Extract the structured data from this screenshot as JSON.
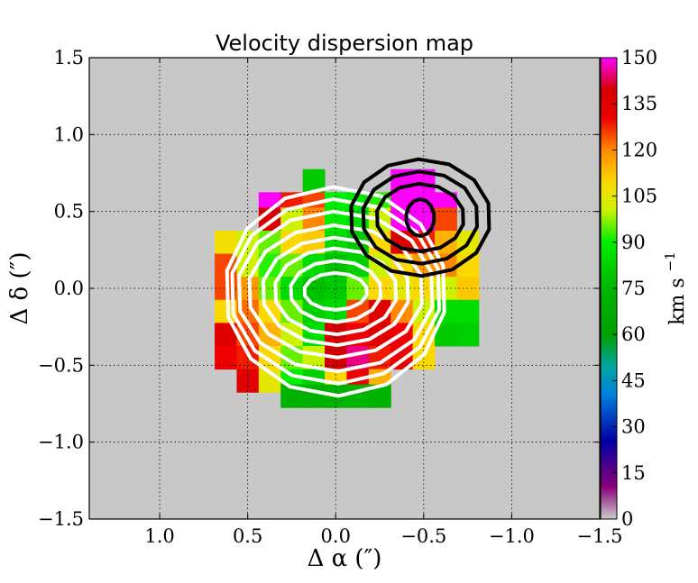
{
  "chart_data": {
    "type": "heatmap",
    "title": "Velocity dispersion map",
    "xlabel": "Δ α  (″)",
    "ylabel": "Δ δ  (″)",
    "xlim": [
      1.4,
      -1.5
    ],
    "ylim": [
      -1.5,
      1.5
    ],
    "x_ticks": [
      1.0,
      0.5,
      0.0,
      -0.5,
      -1.0,
      -1.5
    ],
    "x_tick_labels": [
      "1.0",
      "0.5",
      "0.0",
      "−0.5",
      "−1.0",
      "−1.5"
    ],
    "y_ticks": [
      1.5,
      1.0,
      0.5,
      0.0,
      -0.5,
      -1.0,
      -1.5
    ],
    "y_tick_labels": [
      "1.5",
      "1.0",
      "0.5",
      "0.0",
      "−0.5",
      "−1.0",
      "−1.5"
    ],
    "grid": true,
    "grid_style": "dotted",
    "background_color": "#c8c8c8",
    "colorbar": {
      "label": "km s",
      "label_exponent": "−1",
      "range": [
        0,
        150
      ],
      "ticks": [
        0,
        15,
        30,
        45,
        60,
        75,
        90,
        105,
        120,
        135,
        150
      ],
      "tick_labels": [
        "0",
        "15",
        "30",
        "45",
        "60",
        "75",
        "90",
        "105",
        "120",
        "135",
        "150"
      ]
    },
    "pixel_size_arcsec": 0.125,
    "pixels": [
      {
        "x": 0.125,
        "y": 0.7,
        "v": 80
      },
      {
        "x": -0.375,
        "y": 0.7,
        "v": 150
      },
      {
        "x": -0.5,
        "y": 0.7,
        "v": 150
      },
      {
        "x": 0.375,
        "y": 0.55,
        "v": 150
      },
      {
        "x": 0.25,
        "y": 0.55,
        "v": 128
      },
      {
        "x": 0.125,
        "y": 0.55,
        "v": 125
      },
      {
        "x": 0.0,
        "y": 0.55,
        "v": 90
      },
      {
        "x": -0.125,
        "y": 0.55,
        "v": 88
      },
      {
        "x": -0.25,
        "y": 0.55,
        "v": 92
      },
      {
        "x": -0.375,
        "y": 0.55,
        "v": 150
      },
      {
        "x": -0.5,
        "y": 0.55,
        "v": 150
      },
      {
        "x": -0.625,
        "y": 0.55,
        "v": 150
      },
      {
        "x": 0.375,
        "y": 0.45,
        "v": 138
      },
      {
        "x": 0.25,
        "y": 0.45,
        "v": 100
      },
      {
        "x": 0.125,
        "y": 0.45,
        "v": 120
      },
      {
        "x": 0.0,
        "y": 0.45,
        "v": 90
      },
      {
        "x": -0.125,
        "y": 0.45,
        "v": 85
      },
      {
        "x": -0.25,
        "y": 0.45,
        "v": 100
      },
      {
        "x": -0.375,
        "y": 0.45,
        "v": 150
      },
      {
        "x": -0.5,
        "y": 0.45,
        "v": 150
      },
      {
        "x": -0.625,
        "y": 0.45,
        "v": 125
      },
      {
        "x": 0.625,
        "y": 0.3,
        "v": 108
      },
      {
        "x": 0.5,
        "y": 0.3,
        "v": 100
      },
      {
        "x": 0.375,
        "y": 0.3,
        "v": 95
      },
      {
        "x": 0.25,
        "y": 0.3,
        "v": 110
      },
      {
        "x": 0.125,
        "y": 0.3,
        "v": 112
      },
      {
        "x": 0.0,
        "y": 0.3,
        "v": 85
      },
      {
        "x": -0.125,
        "y": 0.3,
        "v": 80
      },
      {
        "x": -0.25,
        "y": 0.3,
        "v": 110
      },
      {
        "x": -0.375,
        "y": 0.3,
        "v": 138
      },
      {
        "x": -0.5,
        "y": 0.3,
        "v": 128
      },
      {
        "x": -0.625,
        "y": 0.3,
        "v": 115
      },
      {
        "x": -0.75,
        "y": 0.3,
        "v": 105
      },
      {
        "x": 0.625,
        "y": 0.15,
        "v": 125
      },
      {
        "x": 0.5,
        "y": 0.15,
        "v": 100
      },
      {
        "x": 0.375,
        "y": 0.15,
        "v": 92
      },
      {
        "x": 0.25,
        "y": 0.15,
        "v": 95
      },
      {
        "x": 0.125,
        "y": 0.15,
        "v": 85
      },
      {
        "x": 0.0,
        "y": 0.15,
        "v": 78
      },
      {
        "x": -0.125,
        "y": 0.15,
        "v": 82
      },
      {
        "x": -0.25,
        "y": 0.15,
        "v": 100
      },
      {
        "x": -0.375,
        "y": 0.15,
        "v": 110
      },
      {
        "x": -0.5,
        "y": 0.15,
        "v": 118
      },
      {
        "x": -0.625,
        "y": 0.15,
        "v": 120
      },
      {
        "x": -0.75,
        "y": 0.15,
        "v": 110
      },
      {
        "x": 0.625,
        "y": 0.0,
        "v": 125
      },
      {
        "x": 0.5,
        "y": 0.0,
        "v": 118
      },
      {
        "x": 0.375,
        "y": 0.0,
        "v": 95
      },
      {
        "x": 0.25,
        "y": 0.0,
        "v": 85
      },
      {
        "x": 0.125,
        "y": 0.0,
        "v": 78
      },
      {
        "x": 0.0,
        "y": 0.0,
        "v": 80
      },
      {
        "x": -0.125,
        "y": 0.0,
        "v": 95
      },
      {
        "x": -0.25,
        "y": 0.0,
        "v": 110
      },
      {
        "x": -0.375,
        "y": 0.0,
        "v": 105
      },
      {
        "x": -0.5,
        "y": 0.0,
        "v": 110
      },
      {
        "x": -0.625,
        "y": 0.0,
        "v": 100
      },
      {
        "x": -0.75,
        "y": 0.0,
        "v": 112
      },
      {
        "x": 0.625,
        "y": -0.15,
        "v": 110
      },
      {
        "x": 0.5,
        "y": -0.15,
        "v": 122
      },
      {
        "x": 0.375,
        "y": -0.15,
        "v": 110
      },
      {
        "x": 0.25,
        "y": -0.15,
        "v": 95
      },
      {
        "x": 0.125,
        "y": -0.15,
        "v": 82
      },
      {
        "x": 0.0,
        "y": -0.15,
        "v": 85
      },
      {
        "x": -0.125,
        "y": -0.15,
        "v": 125
      },
      {
        "x": -0.25,
        "y": -0.15,
        "v": 135
      },
      {
        "x": -0.375,
        "y": -0.15,
        "v": 120
      },
      {
        "x": -0.5,
        "y": -0.15,
        "v": 100
      },
      {
        "x": -0.625,
        "y": -0.15,
        "v": 85
      },
      {
        "x": -0.75,
        "y": -0.15,
        "v": 85
      },
      {
        "x": 0.625,
        "y": -0.3,
        "v": 135
      },
      {
        "x": 0.5,
        "y": -0.3,
        "v": 125
      },
      {
        "x": 0.375,
        "y": -0.3,
        "v": 115
      },
      {
        "x": 0.25,
        "y": -0.3,
        "v": 100
      },
      {
        "x": 0.125,
        "y": -0.3,
        "v": 85
      },
      {
        "x": 0.0,
        "y": -0.3,
        "v": 140
      },
      {
        "x": -0.125,
        "y": -0.3,
        "v": 130
      },
      {
        "x": -0.25,
        "y": -0.3,
        "v": 135
      },
      {
        "x": -0.375,
        "y": -0.3,
        "v": 130
      },
      {
        "x": -0.5,
        "y": -0.3,
        "v": 110
      },
      {
        "x": -0.625,
        "y": -0.3,
        "v": 80
      },
      {
        "x": -0.75,
        "y": -0.3,
        "v": 82
      },
      {
        "x": 0.625,
        "y": -0.45,
        "v": 130
      },
      {
        "x": 0.5,
        "y": -0.45,
        "v": 128
      },
      {
        "x": 0.375,
        "y": -0.45,
        "v": 110
      },
      {
        "x": 0.25,
        "y": -0.45,
        "v": 95
      },
      {
        "x": 0.125,
        "y": -0.45,
        "v": 100
      },
      {
        "x": 0.0,
        "y": -0.45,
        "v": 140
      },
      {
        "x": -0.125,
        "y": -0.45,
        "v": 145
      },
      {
        "x": -0.25,
        "y": -0.45,
        "v": 128
      },
      {
        "x": -0.375,
        "y": -0.45,
        "v": 130
      },
      {
        "x": -0.5,
        "y": -0.45,
        "v": 110
      },
      {
        "x": 0.5,
        "y": -0.6,
        "v": 135
      },
      {
        "x": 0.375,
        "y": -0.6,
        "v": 105
      },
      {
        "x": 0.25,
        "y": -0.6,
        "v": 90
      },
      {
        "x": 0.125,
        "y": -0.6,
        "v": 82
      },
      {
        "x": 0.0,
        "y": -0.6,
        "v": 110
      },
      {
        "x": -0.125,
        "y": -0.6,
        "v": 130
      },
      {
        "x": -0.25,
        "y": -0.6,
        "v": 115
      },
      {
        "x": 0.25,
        "y": -0.7,
        "v": 72
      },
      {
        "x": 0.125,
        "y": -0.7,
        "v": 70
      },
      {
        "x": 0.0,
        "y": -0.7,
        "v": 72
      },
      {
        "x": -0.125,
        "y": -0.7,
        "v": 75
      },
      {
        "x": -0.25,
        "y": -0.7,
        "v": 72
      }
    ],
    "contours": [
      {
        "color": "white",
        "center": [
          0.0,
          -0.02
        ],
        "radii": [
          [
            0.18,
            0.12
          ],
          [
            0.26,
            0.2
          ],
          [
            0.35,
            0.28
          ],
          [
            0.42,
            0.35
          ],
          [
            0.5,
            0.43
          ],
          [
            0.56,
            0.52
          ],
          [
            0.6,
            0.6
          ],
          [
            0.63,
            0.68
          ]
        ]
      },
      {
        "color": "black",
        "center": [
          -0.48,
          0.46
        ],
        "radii": [
          [
            0.08,
            0.12
          ],
          [
            0.25,
            0.22
          ],
          [
            0.33,
            0.3
          ],
          [
            0.4,
            0.38
          ]
        ]
      }
    ]
  }
}
